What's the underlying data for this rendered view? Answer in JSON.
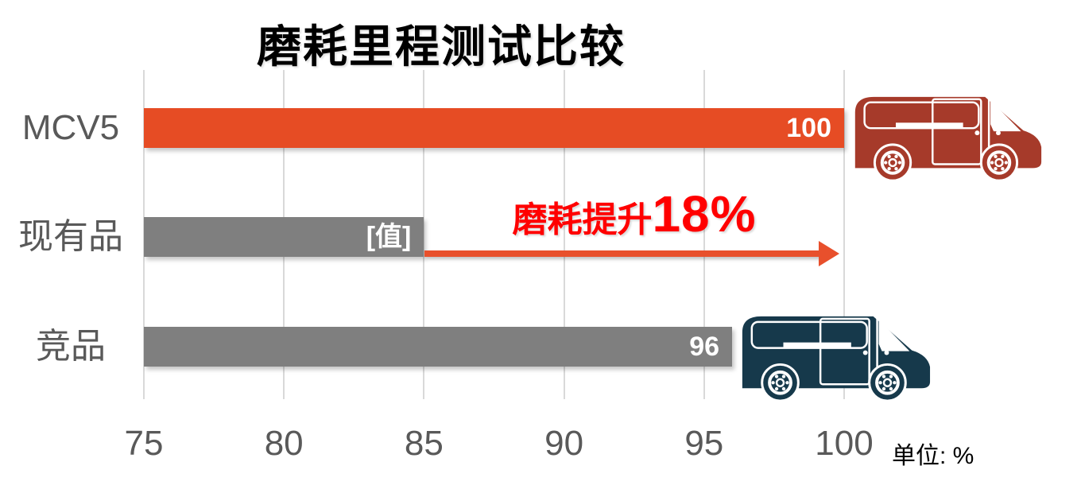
{
  "page": {
    "background": "#FFFFFF"
  },
  "title": "磨耗里程测试比较",
  "unit_label": "单位: %",
  "annotation": {
    "prefix": "磨耗提升",
    "value": "18%",
    "text_color": "#FF0000",
    "arrow_color": "#E8502C"
  },
  "icons": {
    "mcv5_van": "delivery-van-icon",
    "mcv5_van_color": "#A63A2A",
    "competitor_van": "delivery-van-icon",
    "competitor_van_color": "#16394B"
  },
  "chart_data": {
    "type": "bar",
    "orientation": "horizontal",
    "title": "磨耗里程测试比较",
    "categories": [
      "MCV5",
      "现有品",
      "竞品"
    ],
    "values": [
      100,
      85,
      96
    ],
    "value_labels": [
      "100",
      "[值]",
      "96"
    ],
    "bar_colors": [
      "#E64C24",
      "#7F7F7F",
      "#7F7F7F"
    ],
    "xlim": [
      75,
      100
    ],
    "xticks": [
      75,
      80,
      85,
      90,
      95,
      100
    ],
    "xlabel": "",
    "ylabel": "",
    "unit": "%",
    "grid": true,
    "gridline_color": "#D9D9D9",
    "legend": false,
    "annotation": "磨耗提升18%"
  }
}
